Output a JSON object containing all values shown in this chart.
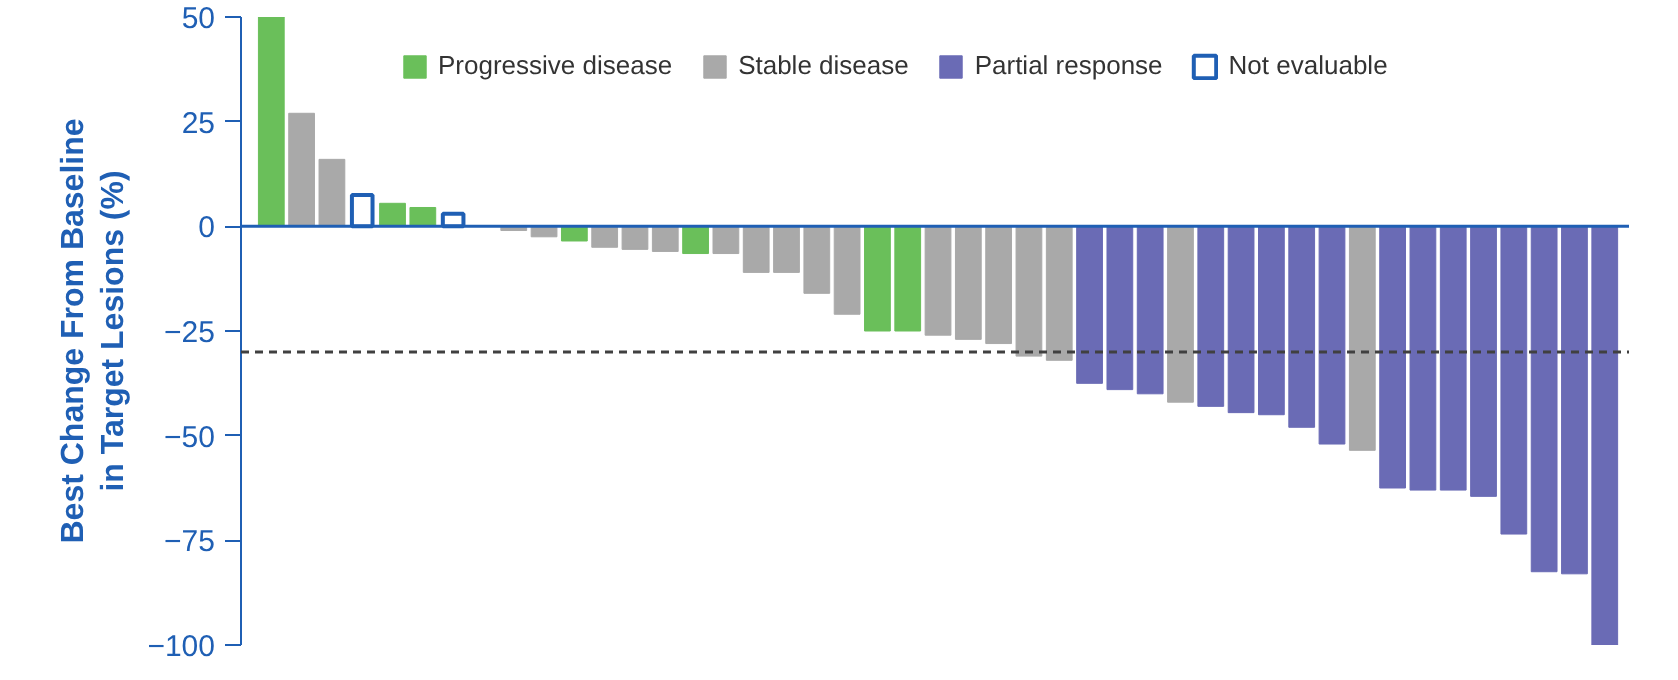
{
  "chart_data": {
    "type": "bar",
    "ylabel": "Best Change From Baseline in Target Lesions (%)",
    "categories": [
      null,
      null,
      null,
      null,
      null,
      null,
      null,
      null,
      null,
      null,
      null,
      null,
      null,
      null,
      null,
      null,
      null,
      null,
      null,
      null,
      null,
      null,
      null,
      null,
      null,
      null,
      null,
      null,
      null,
      null,
      null,
      null,
      null,
      null,
      null,
      null,
      null,
      null,
      null,
      null,
      null,
      null,
      null,
      null,
      null
    ],
    "series": [
      {
        "name": "Progressive disease",
        "color": "#6abf5a",
        "values": [
          50,
          null,
          null,
          null,
          5.5,
          4.5,
          null,
          null,
          null,
          null,
          -3.5,
          null,
          null,
          null,
          -6.5,
          null,
          null,
          null,
          null,
          null,
          -25,
          -25,
          null,
          null,
          null,
          null,
          null,
          null,
          null,
          null,
          null,
          null,
          null,
          null,
          null,
          null,
          null,
          null,
          null,
          null,
          null,
          null,
          null,
          null,
          null
        ]
      },
      {
        "name": "Stable disease",
        "color": "#a9a9a9",
        "values": [
          null,
          27,
          16,
          null,
          null,
          null,
          null,
          0,
          -1,
          -2.5,
          null,
          -5,
          -5.5,
          -6,
          null,
          -6.5,
          -11,
          -11,
          -16,
          -21,
          null,
          null,
          -26,
          -27,
          -28,
          -31,
          -32,
          null,
          null,
          null,
          -42,
          null,
          null,
          null,
          null,
          null,
          -53.5,
          null,
          null,
          null,
          null,
          null,
          null,
          null,
          null
        ]
      },
      {
        "name": "Partial response",
        "color": "#6a6bb5",
        "values": [
          null,
          null,
          null,
          null,
          null,
          null,
          null,
          null,
          null,
          null,
          null,
          null,
          null,
          null,
          null,
          null,
          null,
          null,
          null,
          null,
          null,
          null,
          null,
          null,
          null,
          null,
          null,
          -37.5,
          -39,
          -40,
          null,
          -43,
          -44.5,
          -45,
          -48,
          -52,
          null,
          -62.5,
          -63,
          -63,
          -64.5,
          -73.5,
          -82.5,
          -83,
          -100
        ]
      },
      {
        "name": "Not evaluable",
        "color": "#ffffff",
        "values": [
          null,
          null,
          null,
          7.5,
          null,
          null,
          3,
          null,
          null,
          null,
          null,
          null,
          null,
          null,
          null,
          null,
          null,
          null,
          null,
          null,
          null,
          null,
          null,
          null,
          null,
          null,
          null,
          null,
          null,
          null,
          null,
          null,
          null,
          null,
          null,
          null,
          null,
          null,
          null,
          null,
          null,
          null,
          null,
          null,
          null
        ]
      }
    ],
    "ylim": [
      -100,
      50
    ],
    "yticks": [
      -100,
      -75,
      -50,
      -25,
      0,
      25,
      50
    ],
    "ref_lines": [
      {
        "axis": "y",
        "value": -30,
        "color": "#404040",
        "line_style": "dashed"
      },
      {
        "axis": "y",
        "value": 0,
        "color": "#1f5fb4",
        "line_style": "solid"
      }
    ],
    "legend": "top",
    "tick_labels": "y"
  }
}
